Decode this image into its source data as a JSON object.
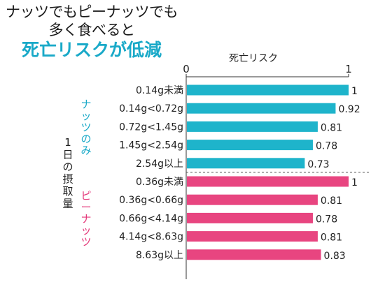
{
  "title": {
    "line1": "ナッツでもピーナッツでも",
    "line2": "多く食べると",
    "line3": "死亡リスクが低減"
  },
  "colors": {
    "title_accent": "#19a9c8",
    "nuts": "#1eb4cb",
    "peanuts": "#e84580",
    "nuts_label": "#19a9c8",
    "peanuts_label": "#e4397a"
  },
  "chart_data": {
    "type": "bar",
    "orientation": "horizontal",
    "xlabel": "死亡リスク",
    "xlim": [
      0,
      1
    ],
    "xticks": [
      "0",
      "1"
    ],
    "ylabel": "1日の摂取量",
    "groups": [
      {
        "name": "ナッツのみ",
        "categories": [
          "0.14g未満",
          "0.14g<0.72g",
          "0.72g<1.45g",
          "1.45g<2.54g",
          "2.54g以上"
        ],
        "values": [
          1,
          0.92,
          0.81,
          0.78,
          0.73
        ],
        "labels": [
          "1",
          "0.92",
          "0.81",
          "0.78",
          "0.73"
        ]
      },
      {
        "name": "ピーナッツ",
        "categories": [
          "0.36g未満",
          "0.36g<0.66g",
          "0.66g<4.14g",
          "4.14g<8.63g",
          "8.63g以上"
        ],
        "values": [
          1,
          0.81,
          0.78,
          0.81,
          0.83
        ],
        "labels": [
          "1",
          "0.81",
          "0.78",
          "0.81",
          "0.83"
        ]
      }
    ]
  }
}
